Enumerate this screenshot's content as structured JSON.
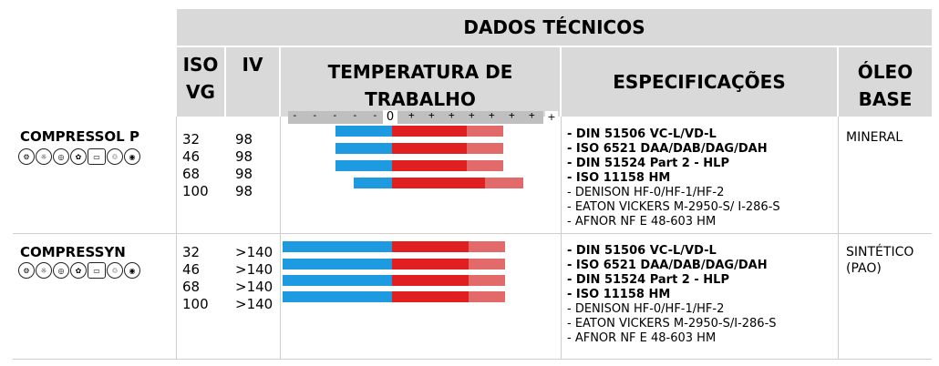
{
  "title": "DADOS TÉCNICOS",
  "headers": {
    "iso_vg": [
      "ISO",
      "VG"
    ],
    "iv": "IV",
    "temperatura": [
      "TEMPERATURA DE",
      "TRABALHO"
    ],
    "especificacoes": "ESPECIFICAÇÕES",
    "oleo_base": [
      "ÓLEO",
      "BASE"
    ]
  },
  "scale": {
    "minus": [
      "-",
      "-",
      "-",
      "-",
      "-"
    ],
    "zero": "0",
    "plus": [
      "+",
      "+",
      "+",
      "+",
      "+",
      "+",
      "+",
      "+"
    ]
  },
  "products": [
    {
      "name": "COMPRESSOL P",
      "icons": [
        "compressor-icon",
        "gear-icon",
        "pump-icon",
        "cycle-icon",
        "screw-icon",
        "recycle-icon",
        "drop-icon"
      ],
      "iso_vg": [
        "32",
        "46",
        "68",
        "100"
      ],
      "iv": [
        "98",
        "98",
        "98",
        "98"
      ],
      "specs": [
        {
          "text": "- DIN 51506 VC-L/VD-L",
          "bold": true
        },
        {
          "text": "- ISO 6521 DAA/DAB/DAG/DAH",
          "bold": true
        },
        {
          "text": "- DIN 51524 Part 2 - HLP",
          "bold": true
        },
        {
          "text": "- ISO 11158 HM",
          "bold": true
        },
        {
          "text": "- DENISON HF-0/HF-1/HF-2",
          "bold": false
        },
        {
          "text": "- EATON VICKERS M-2950-S/ I-286-S",
          "bold": false
        },
        {
          "text": "- AFNOR NF E 48-603 HM",
          "bold": false
        }
      ],
      "oleo": [
        "MINERAL"
      ]
    },
    {
      "name": "COMPRESSYN",
      "icons": [
        "compressor-icon",
        "gear-icon",
        "pump-icon",
        "cycle-icon",
        "screw-icon",
        "recycle-icon",
        "drop-icon"
      ],
      "iso_vg": [
        "32",
        "46",
        "68",
        "100"
      ],
      "iv": [
        ">140",
        ">140",
        ">140",
        ">140"
      ],
      "specs": [
        {
          "text": "- DIN 51506 VC-L/VD-L",
          "bold": true
        },
        {
          "text": "- ISO 6521 DAA/DAB/DAG/DAH",
          "bold": true
        },
        {
          "text": "- DIN 51524 Part 2 - HLP",
          "bold": true
        },
        {
          "text": "- ISO 11158 HM",
          "bold": true
        },
        {
          "text": "- DENISON HF-0/HF-1/HF-2",
          "bold": false
        },
        {
          "text": "- EATON VICKERS M-2950-S/I-286-S",
          "bold": false
        },
        {
          "text": "- AFNOR NF E 48-603 HM",
          "bold": false
        }
      ],
      "oleo": [
        "SINTÉTICO",
        "(PAO)"
      ]
    }
  ],
  "colors": {
    "header_bg": "#d9d9d9",
    "cold": "#1e9be0",
    "work": "#e02020",
    "limit": "#e26a6a"
  }
}
